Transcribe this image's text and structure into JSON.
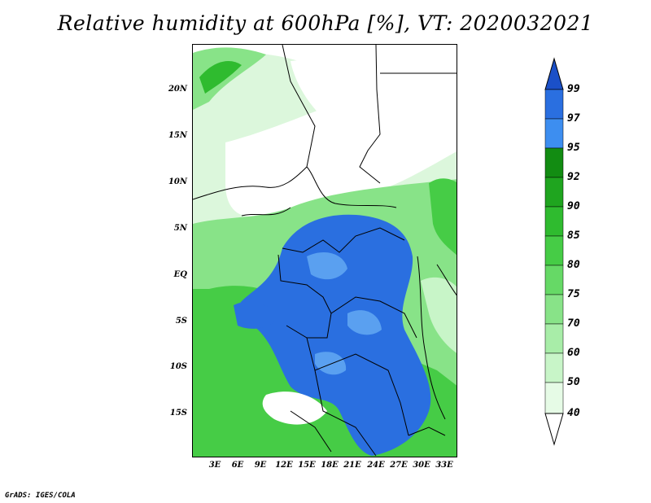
{
  "title": "Relative humidity at 600hPa [%], VT: 2020032021",
  "credit": "GrADS: IGES/COLA",
  "latitude_labels": [
    "20N",
    "15N",
    "10N",
    "5N",
    "EQ",
    "5S",
    "10S",
    "15S"
  ],
  "longitude_labels": [
    "3E",
    "6E",
    "9E",
    "12E",
    "15E",
    "18E",
    "21E",
    "24E",
    "27E",
    "30E",
    "33E"
  ],
  "colorbar": {
    "levels": [
      "40",
      "50",
      "60",
      "70",
      "75",
      "80",
      "85",
      "90",
      "92",
      "95",
      "97",
      "99"
    ],
    "colors": [
      "#ffffff",
      "#e6fbe6",
      "#c8f5c8",
      "#a8eda8",
      "#88e388",
      "#66d966",
      "#46cc46",
      "#2fbb2f",
      "#1fa51f",
      "#128c12",
      "#3d8ef0",
      "#2a6fe0",
      "#1b50c8"
    ]
  },
  "map_colors": {
    "dry": "#ffffff",
    "light_green": "#c8f5c8",
    "mid_green": "#66d966",
    "dark_green": "#1fa51f",
    "blue": "#2a6fe0",
    "light_blue": "#5aa0f0",
    "border": "#000000"
  }
}
